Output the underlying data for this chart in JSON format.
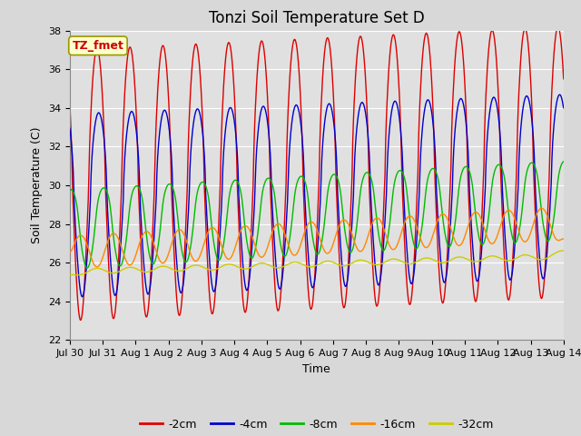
{
  "title": "Tonzi Soil Temperature Set D",
  "xlabel": "Time",
  "ylabel": "Soil Temperature (C)",
  "annotation_text": "TZ_fmet",
  "ylim": [
    22,
    38
  ],
  "xtick_labels": [
    "Jul 30",
    "Jul 31",
    "Aug 1",
    "Aug 2",
    "Aug 3",
    "Aug 4",
    "Aug 5",
    "Aug 6",
    "Aug 7",
    "Aug 8",
    "Aug 9",
    "Aug 10",
    "Aug 11",
    "Aug 12",
    "Aug 13",
    "Aug 14"
  ],
  "series": [
    {
      "label": "-2cm",
      "color": "#dd0000"
    },
    {
      "label": "-4cm",
      "color": "#0000cc"
    },
    {
      "label": "-8cm",
      "color": "#00bb00"
    },
    {
      "label": "-16cm",
      "color": "#ff8800"
    },
    {
      "label": "-32cm",
      "color": "#cccc00"
    }
  ],
  "background_color": "#e0e0e0",
  "grid_color": "#ffffff",
  "linewidth": 1.0,
  "title_fontsize": 12,
  "label_fontsize": 9,
  "tick_fontsize": 8
}
